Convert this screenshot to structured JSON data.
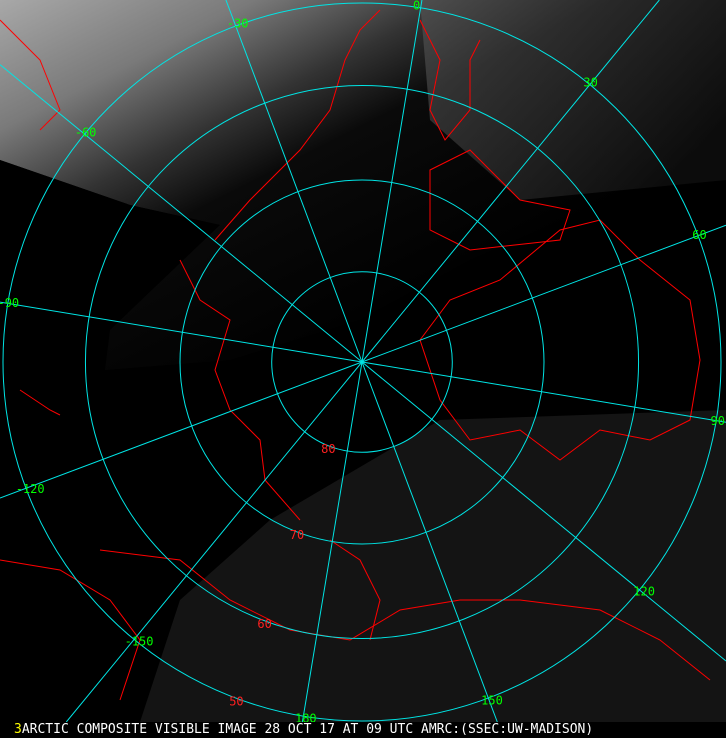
{
  "caption": {
    "frame_number": "3",
    "text": "ARCTIC COMPOSITE VISIBLE IMAGE 28 OCT 17 AT 09 UTC AMRC:(SSEC:UW-MADISON)"
  },
  "map": {
    "projection": "polar stereographic (north pole)",
    "latitude_labels": [
      "80",
      "70",
      "60",
      "50"
    ],
    "latitudes": [
      80,
      70,
      60,
      50
    ],
    "longitude_labels": [
      "0",
      "30",
      "60",
      "90",
      "120",
      "150",
      "180",
      "-150",
      "-120",
      "-90",
      "-60",
      "-30"
    ],
    "longitudes": [
      0,
      30,
      60,
      90,
      120,
      150,
      180,
      -150,
      -120,
      -90,
      -60,
      -30
    ],
    "colors": {
      "grid": "#00e5e5",
      "coastline": "#ff0000",
      "longitude_label": "#00ff00",
      "latitude_label": "#ff2020",
      "caption_text": "#ffffff",
      "frame_number": "#ffff00"
    }
  }
}
